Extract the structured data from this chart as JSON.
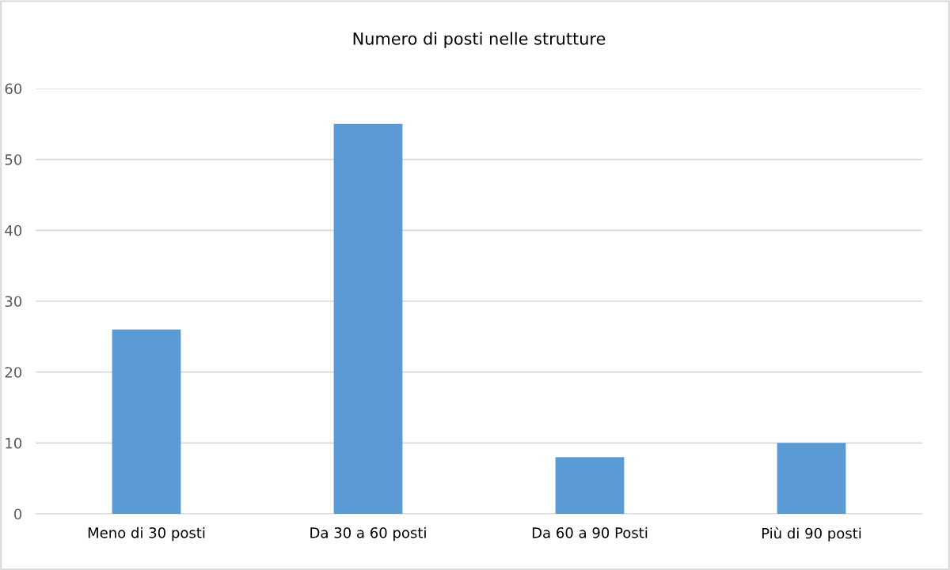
{
  "chart_data": {
    "type": "bar",
    "title": "Numero di posti nelle strutture",
    "categories": [
      "Meno di 30 posti",
      "Da 30 a 60 posti",
      "Da 60 a 90 Posti",
      "Più di 90 posti"
    ],
    "values": [
      26,
      55,
      8,
      10
    ],
    "color": "#5b9bd5",
    "ylim": [
      0,
      60
    ],
    "yticks": [
      0,
      10,
      20,
      30,
      40,
      50,
      60
    ],
    "grid": "y",
    "legend": false
  }
}
